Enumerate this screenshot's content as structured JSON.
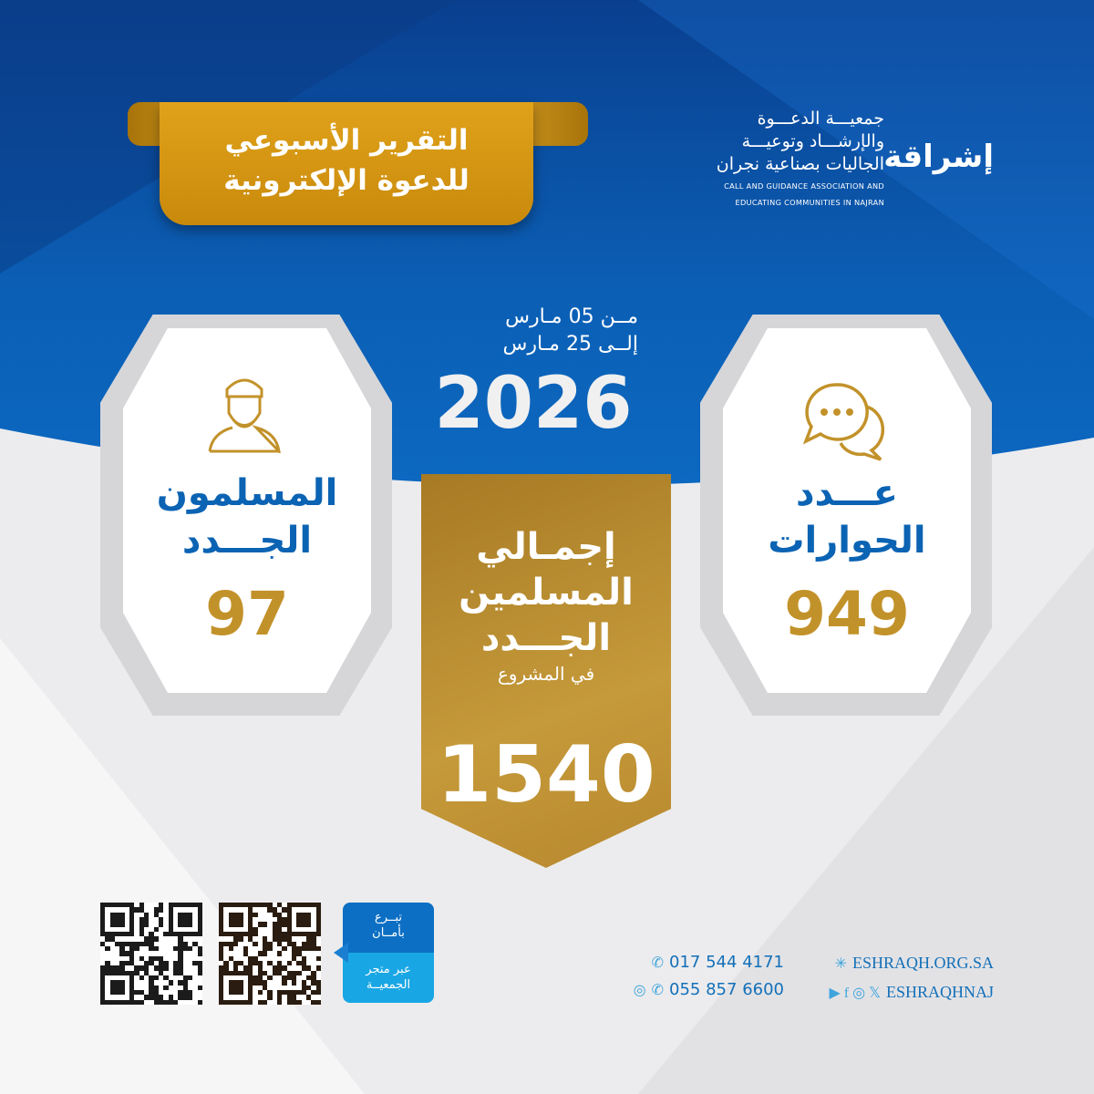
{
  "header": {
    "report_title_line1": "التقرير الأسبوعي",
    "report_title_line2": "للدعوة الإلكترونية",
    "org_name_ar": [
      "جمعيـــة الدعـــوة",
      "والإرشـــاد وتوعيـــة",
      "الجاليات بصناعية نجران"
    ],
    "org_name_en": [
      "CALL AND GUIDANCE ASSOCIATION AND",
      "EDUCATING COMMUNITIES IN NAJRAN"
    ],
    "logo_text": "إشراقة"
  },
  "period": {
    "from": "مــن   05   مـارس",
    "to": "إلــى   25   مـارس",
    "year": "2026"
  },
  "cards": {
    "new_muslims": {
      "title1": "المسلمون",
      "title2": "الجـــدد",
      "value": "97",
      "icon": "man-avatar-icon"
    },
    "dialogues": {
      "title1": "عـــدد",
      "title2": "الحوارات",
      "value": "949",
      "icon": "chat-bubbles-icon"
    },
    "total": {
      "line1": "إجمـالي",
      "line2": "المسلمين",
      "line3": "الجـــدد",
      "sub": "في المشروع",
      "value": "1540"
    }
  },
  "footer": {
    "donate_top": [
      "تبــرع",
      "بأمــان"
    ],
    "donate_bottom": [
      "عبر متجر",
      "الجمعيــة"
    ],
    "phone1": "017 544 4171",
    "phone2": "055 857 6600",
    "website": "ESHRAQH.ORG.SA",
    "social": "ESHRAQHNAJ"
  },
  "colors": {
    "blue": "#0b5fb0",
    "gold": "#c2922a",
    "light_blue": "#19a6e4"
  }
}
